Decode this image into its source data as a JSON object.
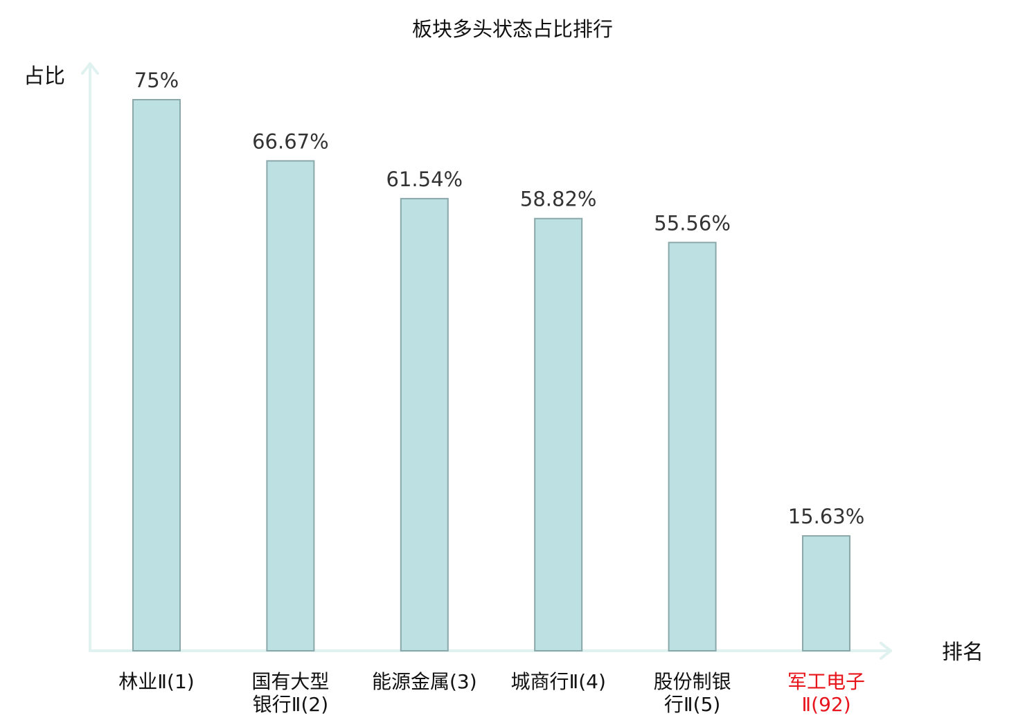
{
  "chart_data": {
    "type": "bar",
    "title": "板块多头状态占比排行",
    "ylabel": "占比",
    "xlabel": "排名",
    "ylim": [
      0,
      80
    ],
    "grid": false,
    "legend": "none",
    "categories": [
      [
        "林业Ⅱ(1)"
      ],
      [
        "国有大型",
        "银行Ⅱ(2)"
      ],
      [
        "能源金属(3)"
      ],
      [
        "城商行Ⅱ(4)"
      ],
      [
        "股份制银",
        "行Ⅱ(5)"
      ],
      [
        "军工电子",
        "Ⅱ(92)"
      ]
    ],
    "values": [
      75,
      66.67,
      61.54,
      58.82,
      55.56,
      15.63
    ],
    "value_labels": [
      "75%",
      "66.67%",
      "61.54%",
      "58.82%",
      "55.56%",
      "15.63%"
    ],
    "category_colors": [
      "#111111",
      "#111111",
      "#111111",
      "#111111",
      "#111111",
      "#e8141c"
    ]
  },
  "colors": {
    "bar_fill": "#bde1e3",
    "bar_stroke": "#8aa7a9",
    "axis": "#dff2ef",
    "highlight": "#e8141c"
  }
}
